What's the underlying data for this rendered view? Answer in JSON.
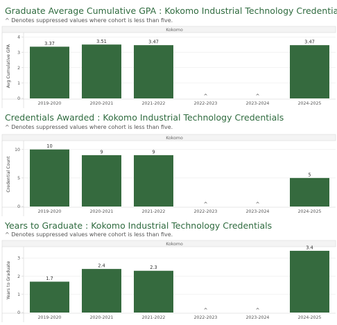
{
  "charts": [
    {
      "title": "Graduate Average Cumulative GPA : Kokomo Industrial Technology Credentials",
      "subtitle": "^ Denotes suppressed values where cohort is less than five."
    },
    {
      "title": "Credentials Awarded : Kokomo Industrial Technology Credentials",
      "subtitle": "^ Denotes suppressed values where cohort is less than five."
    },
    {
      "title": "Years to Graduate : Kokomo Industrial Technology Credentials",
      "subtitle": "^ Denotes suppressed values where cohort is less than five."
    }
  ],
  "chart_data": [
    {
      "type": "bar",
      "title": "Graduate Average Cumulative GPA : Kokomo Industrial Technology Credentials",
      "panel_label": "Kokomo",
      "categories": [
        "2019-2020",
        "2020-2021",
        "2021-2022",
        "2022-2023",
        "2023-2024",
        "2024-2025"
      ],
      "values": [
        3.37,
        3.51,
        3.47,
        null,
        null,
        3.47
      ],
      "labels": [
        "3.37",
        "3.51",
        "3.47",
        "^",
        "^",
        "3.47"
      ],
      "ylabel": "Avg Cumulative GPA",
      "ylim": [
        0,
        4.2
      ],
      "yticks": [
        0,
        1,
        2,
        3,
        4
      ],
      "bar_color": "#356a3e",
      "grid": true
    },
    {
      "type": "bar",
      "title": "Credentials Awarded : Kokomo Industrial Technology Credentials",
      "panel_label": "Kokomo",
      "categories": [
        "2019-2020",
        "2020-2021",
        "2021-2022",
        "2022-2023",
        "2023-2024",
        "2024-2025"
      ],
      "values": [
        10,
        9,
        9,
        null,
        null,
        5
      ],
      "labels": [
        "10",
        "9",
        "9",
        "^",
        "^",
        "5"
      ],
      "ylabel": "Credential Count",
      "ylim": [
        0,
        11.3
      ],
      "yticks": [
        0,
        5,
        10
      ],
      "bar_color": "#356a3e",
      "grid": true
    },
    {
      "type": "bar",
      "title": "Years to Graduate : Kokomo Industrial Technology Credentials",
      "panel_label": "Kokomo",
      "categories": [
        "2019-2020",
        "2020-2021",
        "2021-2022",
        "2022-2023",
        "2023-2024",
        "2024-2025"
      ],
      "values": [
        1.7,
        2.4,
        2.3,
        null,
        null,
        3.4
      ],
      "labels": [
        "1.7",
        "2.4",
        "2.3",
        "^",
        "^",
        "3.4"
      ],
      "ylabel": "Years to Graduate",
      "ylim": [
        0,
        3.55
      ],
      "yticks": [
        0,
        1,
        2,
        3
      ],
      "bar_color": "#356a3e",
      "grid": true
    }
  ]
}
